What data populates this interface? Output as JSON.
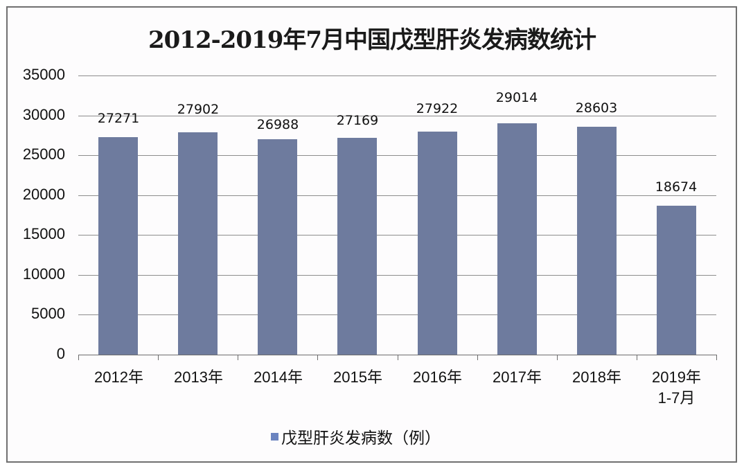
{
  "chart_data": {
    "type": "bar",
    "title": "2012-2019年7月中国戊型肝炎发病数统计",
    "categories": [
      "2012年",
      "2013年",
      "2014年",
      "2015年",
      "2016年",
      "2017年",
      "2018年",
      "2019年\n1-7月"
    ],
    "series": [
      {
        "name": "戊型肝炎发病数（例）",
        "values": [
          27271,
          27902,
          26988,
          27169,
          27922,
          29014,
          28603,
          18674
        ],
        "color": "#6e7b9e"
      }
    ],
    "data_labels": [
      "27271",
      "27902",
      "26988",
      "27169",
      "27922",
      "29014",
      "28603",
      "18674"
    ],
    "xlabel": "",
    "ylabel": "",
    "ylim": [
      0,
      35000
    ],
    "yticks": [
      "0",
      "5000",
      "10000",
      "15000",
      "20000",
      "25000",
      "30000",
      "35000"
    ],
    "grid": true,
    "legend_position": "bottom"
  },
  "legend": {
    "label": "戊型肝炎发病数（例）",
    "swatch_color": "#6b84c0"
  },
  "x_labels": [
    {
      "line1": "2012年",
      "line2": ""
    },
    {
      "line1": "2013年",
      "line2": ""
    },
    {
      "line1": "2014年",
      "line2": ""
    },
    {
      "line1": "2015年",
      "line2": ""
    },
    {
      "line1": "2016年",
      "line2": ""
    },
    {
      "line1": "2017年",
      "line2": ""
    },
    {
      "line1": "2018年",
      "line2": ""
    },
    {
      "line1": "2019年",
      "line2": "1-7月"
    }
  ]
}
